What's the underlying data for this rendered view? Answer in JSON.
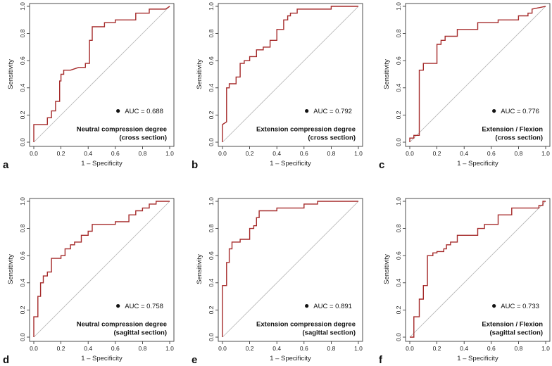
{
  "chart_data": [
    {
      "panel": "a",
      "type": "line",
      "xlabel": "1 – Specificity",
      "ylabel": "Sensitivity",
      "xlim": [
        0,
        1
      ],
      "ylim": [
        0,
        1
      ],
      "xticks": [
        "0.0",
        "0.2",
        "0.4",
        "0.6",
        "0.8",
        "1.0"
      ],
      "yticks": [
        "0.0",
        "0.2",
        "0.4",
        "0.6",
        "0.8",
        "1.0"
      ],
      "auc_label": "AUC = 0.688",
      "annotation": [
        "Neutral compression degree",
        "(cross section)"
      ],
      "series": [
        {
          "name": "ROC",
          "color": "#a52a2a",
          "x": [
            0,
            0,
            0.1,
            0.1,
            0.13,
            0.13,
            0.16,
            0.16,
            0.19,
            0.19,
            0.2,
            0.2,
            0.22,
            0.22,
            0.24,
            0.24,
            0.27,
            0.33,
            0.38,
            0.38,
            0.41,
            0.41,
            0.43,
            0.43,
            0.52,
            0.52,
            0.6,
            0.6,
            0.75,
            0.75,
            0.85,
            0.85,
            0.97,
            1
          ],
          "y": [
            0,
            0.13,
            0.13,
            0.18,
            0.18,
            0.23,
            0.23,
            0.3,
            0.3,
            0.45,
            0.45,
            0.5,
            0.5,
            0.53,
            0.53,
            0.53,
            0.53,
            0.55,
            0.55,
            0.58,
            0.58,
            0.75,
            0.75,
            0.85,
            0.85,
            0.88,
            0.88,
            0.9,
            0.9,
            0.95,
            0.95,
            0.98,
            0.98,
            1
          ]
        }
      ]
    },
    {
      "panel": "b",
      "type": "line",
      "xlabel": "1 – Specificity",
      "ylabel": "Sensitivity",
      "xlim": [
        0,
        1
      ],
      "ylim": [
        0,
        1
      ],
      "xticks": [
        "0.0",
        "0.2",
        "0.4",
        "0.6",
        "0.8",
        "1.0"
      ],
      "yticks": [
        "0.0",
        "0.2",
        "0.4",
        "0.6",
        "0.8",
        "1.0"
      ],
      "auc_label": "AUC = 0.792",
      "annotation": [
        "Extension compression degree",
        "(cross section)"
      ],
      "series": [
        {
          "name": "ROC",
          "color": "#a52a2a",
          "x": [
            0,
            0,
            0.03,
            0.03,
            0.05,
            0.05,
            0.1,
            0.1,
            0.13,
            0.13,
            0.16,
            0.16,
            0.2,
            0.2,
            0.25,
            0.25,
            0.3,
            0.3,
            0.35,
            0.35,
            0.4,
            0.4,
            0.45,
            0.45,
            0.48,
            0.48,
            0.5,
            0.5,
            0.55,
            0.55,
            0.8,
            0.8,
            1
          ],
          "y": [
            0,
            0.13,
            0.15,
            0.4,
            0.4,
            0.43,
            0.43,
            0.48,
            0.48,
            0.58,
            0.58,
            0.6,
            0.6,
            0.63,
            0.63,
            0.68,
            0.68,
            0.7,
            0.7,
            0.75,
            0.75,
            0.83,
            0.83,
            0.9,
            0.9,
            0.93,
            0.93,
            0.95,
            0.95,
            0.98,
            0.98,
            1,
            1
          ]
        }
      ]
    },
    {
      "panel": "c",
      "type": "line",
      "xlabel": "1 – Specificity",
      "ylabel": "Sensitivity",
      "xlim": [
        0,
        1
      ],
      "ylim": [
        0,
        1
      ],
      "xticks": [
        "0.0",
        "0.2",
        "0.4",
        "0.6",
        "0.8",
        "1.0"
      ],
      "yticks": [
        "0.0",
        "0.2",
        "0.4",
        "0.6",
        "0.8",
        "1.0"
      ],
      "auc_label": "AUC = 0.776",
      "annotation": [
        "Extension / Flexion",
        "(cross section)"
      ],
      "series": [
        {
          "name": "ROC",
          "color": "#a52a2a",
          "x": [
            0,
            0,
            0.03,
            0.03,
            0.07,
            0.07,
            0.1,
            0.1,
            0.2,
            0.2,
            0.23,
            0.23,
            0.26,
            0.26,
            0.3,
            0.3,
            0.35,
            0.35,
            0.5,
            0.5,
            0.65,
            0.65,
            0.8,
            0.8,
            0.87,
            0.87,
            0.9,
            0.9,
            1
          ],
          "y": [
            0,
            0.03,
            0.03,
            0.05,
            0.05,
            0.53,
            0.53,
            0.58,
            0.58,
            0.72,
            0.72,
            0.75,
            0.75,
            0.78,
            0.78,
            0.78,
            0.78,
            0.83,
            0.83,
            0.88,
            0.88,
            0.9,
            0.9,
            0.93,
            0.93,
            0.95,
            0.95,
            0.98,
            1
          ]
        }
      ]
    },
    {
      "panel": "d",
      "type": "line",
      "xlabel": "1 – Specificity",
      "ylabel": "Sensitivity",
      "xlim": [
        0,
        1
      ],
      "ylim": [
        0,
        1
      ],
      "xticks": [
        "0.0",
        "0.2",
        "0.4",
        "0.6",
        "0.8",
        "1.0"
      ],
      "yticks": [
        "0.0",
        "0.2",
        "0.4",
        "0.6",
        "0.8",
        "1.0"
      ],
      "auc_label": "AUC = 0.758",
      "annotation": [
        "Neutral compression degree",
        "(sagittal section)"
      ],
      "series": [
        {
          "name": "ROC",
          "color": "#a52a2a",
          "x": [
            0,
            0,
            0.03,
            0.03,
            0.05,
            0.05,
            0.07,
            0.07,
            0.1,
            0.1,
            0.13,
            0.13,
            0.2,
            0.2,
            0.23,
            0.23,
            0.27,
            0.27,
            0.3,
            0.3,
            0.35,
            0.35,
            0.4,
            0.4,
            0.43,
            0.43,
            0.6,
            0.6,
            0.7,
            0.7,
            0.75,
            0.75,
            0.8,
            0.8,
            0.85,
            0.85,
            0.9,
            0.9,
            1
          ],
          "y": [
            0,
            0.15,
            0.15,
            0.3,
            0.3,
            0.4,
            0.4,
            0.45,
            0.45,
            0.48,
            0.48,
            0.58,
            0.58,
            0.6,
            0.6,
            0.65,
            0.65,
            0.68,
            0.68,
            0.7,
            0.7,
            0.75,
            0.75,
            0.78,
            0.78,
            0.83,
            0.83,
            0.85,
            0.85,
            0.9,
            0.9,
            0.93,
            0.93,
            0.95,
            0.95,
            0.98,
            0.98,
            1,
            1
          ]
        }
      ]
    },
    {
      "panel": "e",
      "type": "line",
      "xlabel": "1 – Specificity",
      "ylabel": "Sensitivity",
      "xlim": [
        0,
        1
      ],
      "ylim": [
        0,
        1
      ],
      "xticks": [
        "0.0",
        "0.2",
        "0.4",
        "0.6",
        "0.8",
        "1.0"
      ],
      "yticks": [
        "0.0",
        "0.2",
        "0.4",
        "0.6",
        "0.8",
        "1.0"
      ],
      "auc_label": "AUC = 0.891",
      "annotation": [
        "Extension compression degree",
        "(sagittal section)"
      ],
      "series": [
        {
          "name": "ROC",
          "color": "#a52a2a",
          "x": [
            0,
            0,
            0.03,
            0.03,
            0.05,
            0.05,
            0.07,
            0.07,
            0.13,
            0.13,
            0.2,
            0.2,
            0.23,
            0.23,
            0.25,
            0.25,
            0.27,
            0.27,
            0.4,
            0.4,
            0.6,
            0.6,
            0.7,
            0.7,
            1
          ],
          "y": [
            0,
            0.38,
            0.38,
            0.55,
            0.55,
            0.65,
            0.65,
            0.7,
            0.7,
            0.72,
            0.72,
            0.8,
            0.8,
            0.82,
            0.82,
            0.88,
            0.88,
            0.93,
            0.93,
            0.95,
            0.95,
            0.98,
            0.98,
            1,
            1
          ]
        }
      ]
    },
    {
      "panel": "f",
      "type": "line",
      "xlabel": "1 – Specificity",
      "ylabel": "Sensitivity",
      "xlim": [
        0,
        1
      ],
      "ylim": [
        0,
        1
      ],
      "xticks": [
        "0.0",
        "0.2",
        "0.4",
        "0.6",
        "0.8",
        "1.0"
      ],
      "yticks": [
        "0.0",
        "0.2",
        "0.4",
        "0.6",
        "0.8",
        "1.0"
      ],
      "auc_label": "AUC = 0.733",
      "annotation": [
        "Extension / Flexion",
        "(sagittal section)"
      ],
      "series": [
        {
          "name": "ROC",
          "color": "#a52a2a",
          "x": [
            0,
            0.03,
            0.03,
            0.07,
            0.07,
            0.1,
            0.1,
            0.13,
            0.13,
            0.17,
            0.17,
            0.2,
            0.2,
            0.25,
            0.25,
            0.27,
            0.27,
            0.3,
            0.3,
            0.35,
            0.35,
            0.5,
            0.5,
            0.55,
            0.55,
            0.65,
            0.65,
            0.75,
            0.75,
            0.95,
            0.95,
            0.98,
            0.98,
            1
          ],
          "y": [
            0,
            0,
            0.15,
            0.15,
            0.28,
            0.28,
            0.38,
            0.38,
            0.6,
            0.6,
            0.62,
            0.62,
            0.63,
            0.63,
            0.65,
            0.65,
            0.68,
            0.68,
            0.7,
            0.7,
            0.75,
            0.75,
            0.8,
            0.8,
            0.83,
            0.83,
            0.9,
            0.9,
            0.95,
            0.95,
            0.97,
            0.97,
            1,
            1
          ]
        }
      ]
    }
  ]
}
